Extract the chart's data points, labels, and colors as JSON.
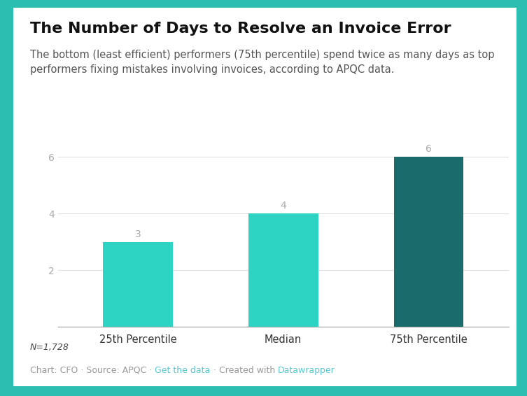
{
  "title": "The Number of Days to Resolve an Invoice Error",
  "subtitle": "The bottom (least efficient) performers (75th percentile) spend twice as many days as top\nperformers fixing mistakes involving invoices, according to APQC data.",
  "categories": [
    "25th Percentile",
    "Median",
    "75th Percentile"
  ],
  "values": [
    3,
    4,
    6
  ],
  "bar_colors": [
    "#2dd4c4",
    "#2dd4c4",
    "#1a6b6b"
  ],
  "ylim": [
    0,
    7
  ],
  "yticks": [
    2,
    4,
    6
  ],
  "note": "N=1,728",
  "footer_plain1": "Chart: CFO · Source: APQC · ",
  "footer_link1": "Get the data",
  "footer_plain2": " · Created with ",
  "footer_link2": "Datawrapper",
  "background_outer": "#2abfb0",
  "background_card": "#ffffff",
  "title_fontsize": 16,
  "subtitle_fontsize": 10.5,
  "bar_label_color": "#aaaaaa",
  "axis_label_color": "#aaaaaa",
  "xtick_color": "#333333",
  "note_color": "#444444",
  "footer_color": "#999999",
  "link_color": "#5bc8d0",
  "grid_color": "#e0e0e0"
}
